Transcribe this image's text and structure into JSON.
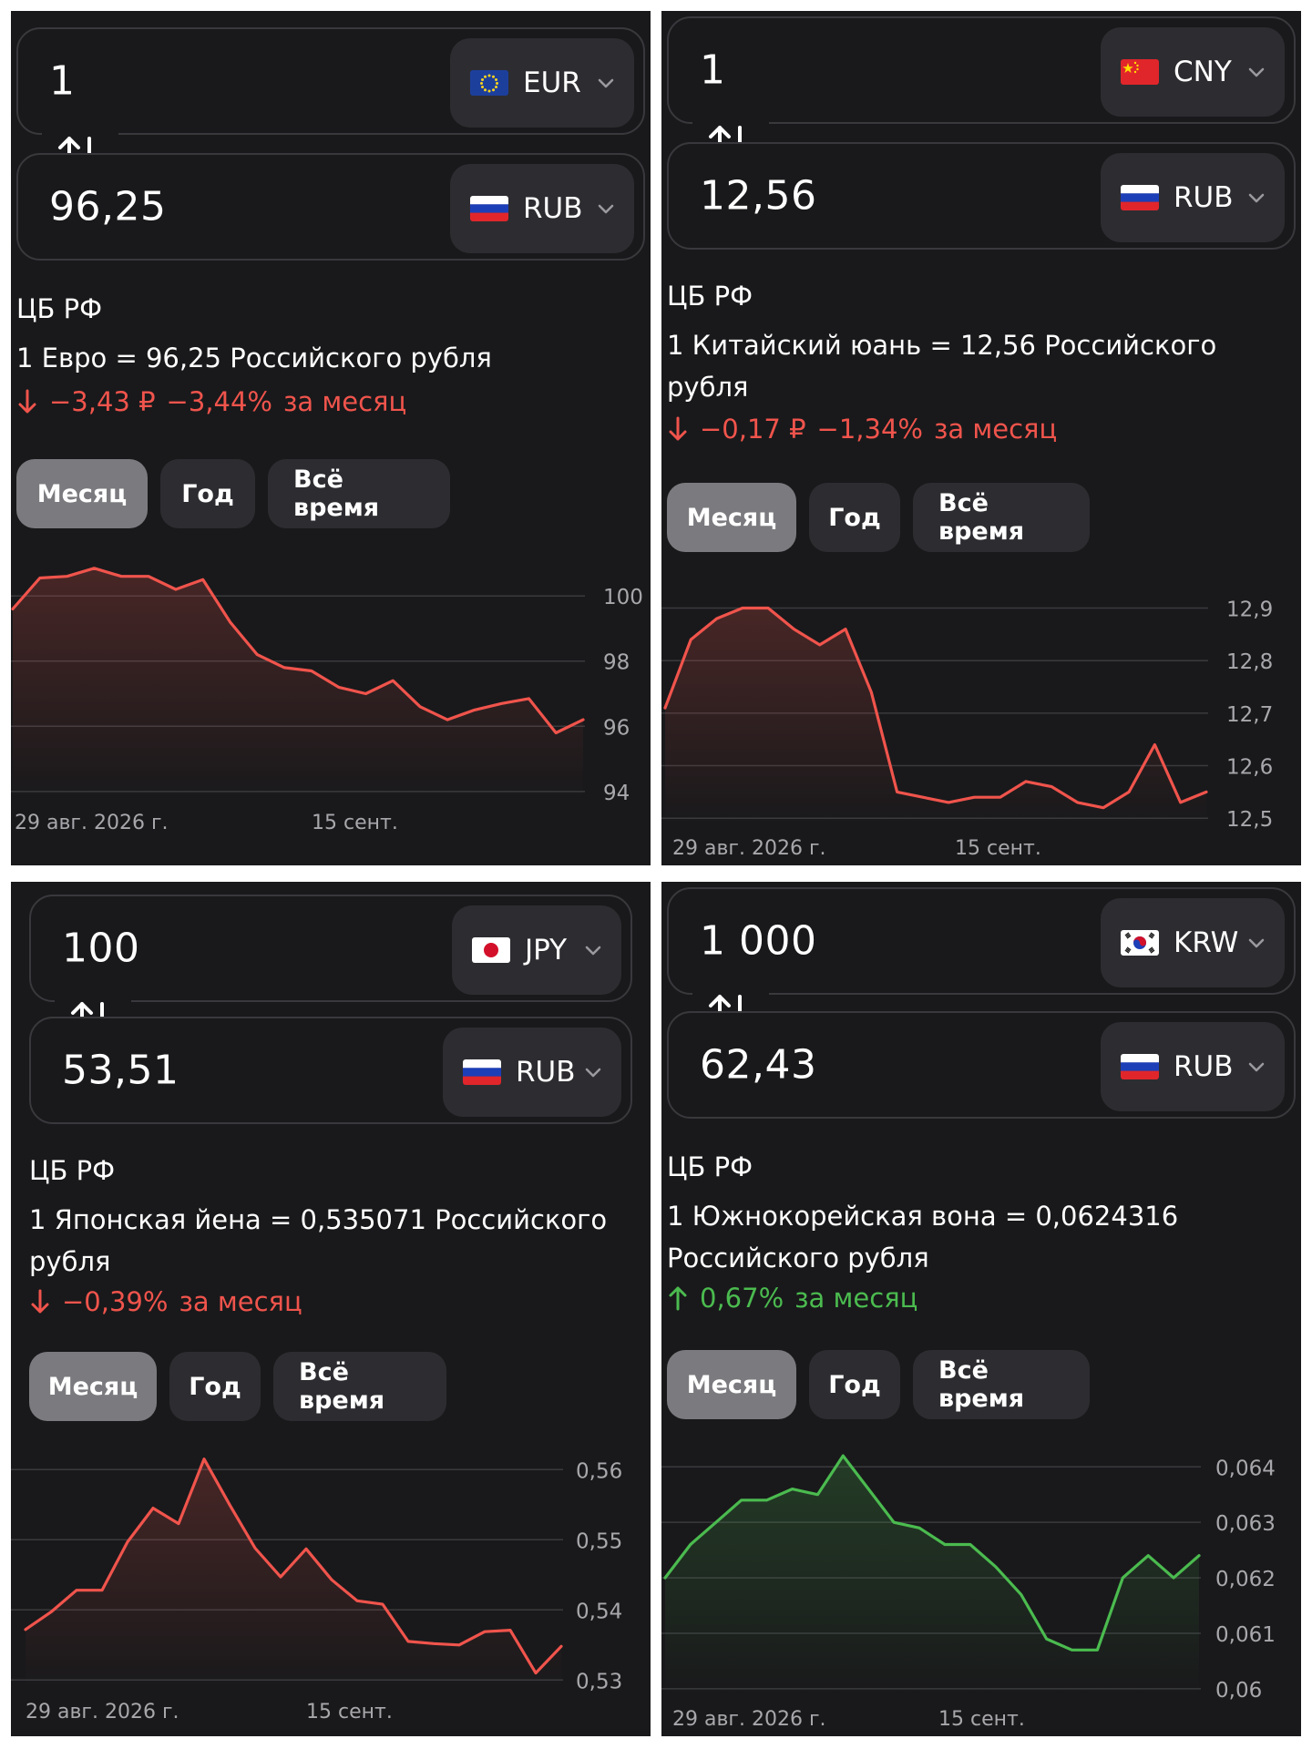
{
  "panels": [
    {
      "id": "eur",
      "from": {
        "amount": "1",
        "code": "EUR",
        "flag": "eu-flag"
      },
      "to": {
        "amount": "96,25",
        "code": "RUB",
        "flag": "ru-flag"
      },
      "source": "ЦБ РФ",
      "description": "1 Евро = 96,25 Российского рубля",
      "change": {
        "direction": "down",
        "abs": "−3,43 ₽",
        "pct": "−3,44%",
        "period": "за месяц",
        "color": "#f0544c"
      },
      "tabs": [
        "Месяц",
        "Год",
        "Всё время"
      ],
      "active_tab": 0
    },
    {
      "id": "cny",
      "from": {
        "amount": "1",
        "code": "CNY",
        "flag": "cn-flag"
      },
      "to": {
        "amount": "12,56",
        "code": "RUB",
        "flag": "ru-flag"
      },
      "source": "ЦБ РФ",
      "description": "1 Китайский юань = 12,56 Российского рубля",
      "change": {
        "direction": "down",
        "abs": "−0,17 ₽",
        "pct": "−1,34%",
        "period": "за месяц",
        "color": "#f0544c"
      },
      "tabs": [
        "Месяц",
        "Год",
        "Всё время"
      ],
      "active_tab": 0
    },
    {
      "id": "jpy",
      "from": {
        "amount": "100",
        "code": "JPY",
        "flag": "jp-flag"
      },
      "to": {
        "amount": "53,51",
        "code": "RUB",
        "flag": "ru-flag"
      },
      "source": "ЦБ РФ",
      "description": "1 Японская йена = 0,535071 Российского рубля",
      "change": {
        "direction": "down",
        "abs": "",
        "pct": "−0,39%",
        "period": "за месяц",
        "color": "#f0544c"
      },
      "tabs": [
        "Месяц",
        "Год",
        "Всё время"
      ],
      "active_tab": 0
    },
    {
      "id": "krw",
      "from": {
        "amount": "1 000",
        "code": "KRW",
        "flag": "kr-flag"
      },
      "to": {
        "amount": "62,43",
        "code": "RUB",
        "flag": "ru-flag"
      },
      "source": "ЦБ РФ",
      "description": "1 Южнокорейская вона = 0,0624316 Российского рубля",
      "change": {
        "direction": "up",
        "abs": "",
        "pct": "0,67%",
        "period": "за месяц",
        "color": "#4bbb4f"
      },
      "tabs": [
        "Месяц",
        "Год",
        "Всё время"
      ],
      "active_tab": 0
    }
  ],
  "chart_data": [
    {
      "type": "area",
      "x_labels": [
        "29 авг. 2026 г.",
        "15 сент."
      ],
      "y_ticks": [
        "100",
        "98",
        "96",
        "94"
      ],
      "y_tick_values": [
        100,
        98,
        96,
        94
      ],
      "ylim": [
        93.8,
        100.9
      ],
      "grid": true,
      "line_color": "#f0544c",
      "values": [
        99.6,
        100.55,
        100.6,
        100.85,
        100.6,
        100.6,
        100.2,
        100.5,
        99.2,
        98.2,
        97.8,
        97.7,
        97.2,
        97.0,
        97.4,
        96.6,
        96.2,
        96.5,
        96.7,
        96.85,
        95.8,
        96.2
      ]
    },
    {
      "type": "area",
      "x_labels": [
        "29 авг. 2026 г.",
        "15 сент."
      ],
      "y_ticks": [
        "12,9",
        "12,8",
        "12,7",
        "12,6",
        "12,5"
      ],
      "y_tick_values": [
        12.9,
        12.8,
        12.7,
        12.6,
        12.5
      ],
      "ylim": [
        12.49,
        12.92
      ],
      "grid": true,
      "line_color": "#f0544c",
      "values": [
        12.71,
        12.84,
        12.88,
        12.9,
        12.9,
        12.86,
        12.83,
        12.86,
        12.74,
        12.55,
        12.54,
        12.53,
        12.54,
        12.54,
        12.57,
        12.56,
        12.53,
        12.52,
        12.55,
        12.64,
        12.53,
        12.55
      ]
    },
    {
      "type": "area",
      "x_labels": [
        "29 авг. 2026 г.",
        "15 сент."
      ],
      "y_ticks": [
        "0,56",
        "0,55",
        "0,54",
        "0,53"
      ],
      "y_tick_values": [
        0.56,
        0.55,
        0.54,
        0.53
      ],
      "ylim": [
        0.529,
        0.5625
      ],
      "grid": true,
      "line_color": "#f0544c",
      "values": [
        0.5372,
        0.5397,
        0.5428,
        0.5428,
        0.5497,
        0.5545,
        0.5523,
        0.5615,
        0.555,
        0.5488,
        0.5447,
        0.5487,
        0.5443,
        0.5413,
        0.5408,
        0.5355,
        0.5352,
        0.535,
        0.5369,
        0.5371,
        0.531,
        0.5348
      ]
    },
    {
      "type": "area",
      "x_labels": [
        "29 авг. 2026 г.",
        "15 сент."
      ],
      "y_ticks": [
        "0,064",
        "0,063",
        "0,062",
        "0,061",
        "0,06"
      ],
      "y_tick_values": [
        0.064,
        0.063,
        0.062,
        0.061,
        0.06
      ],
      "ylim": [
        0.0599,
        0.0643
      ],
      "grid": true,
      "line_color": "#4bbb4f",
      "values": [
        0.062,
        0.0626,
        0.063,
        0.0634,
        0.0634,
        0.0636,
        0.0635,
        0.0642,
        0.0636,
        0.063,
        0.0629,
        0.0626,
        0.0626,
        0.0622,
        0.0617,
        0.0609,
        0.0607,
        0.0607,
        0.062,
        0.0624,
        0.062,
        0.0624
      ]
    }
  ]
}
